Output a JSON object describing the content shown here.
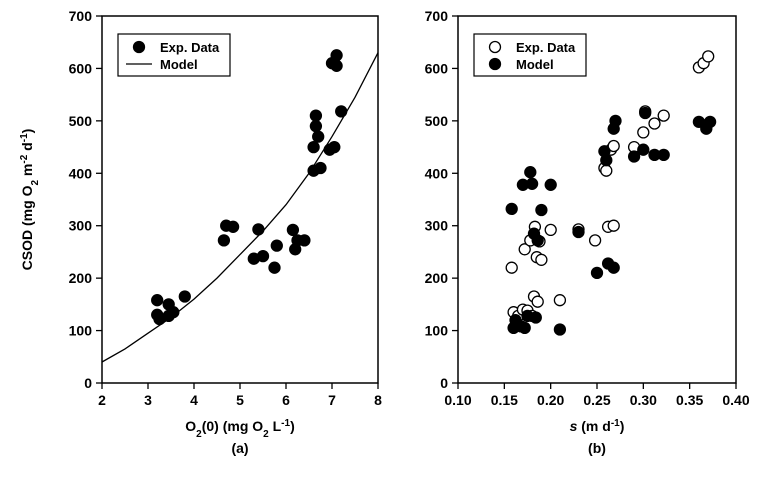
{
  "chart_data": [
    {
      "type": "scatter",
      "panel_label": "(a)",
      "xlabel_parts": [
        {
          "t": "O",
          "sub": false
        },
        {
          "t": "2",
          "sub": true
        },
        {
          "t": "(0) (mg O",
          "sub": false
        },
        {
          "t": "2",
          "sub": true
        },
        {
          "t": " L",
          "sub": false
        },
        {
          "t": "-1",
          "sup": true
        },
        {
          "t": ")",
          "sub": false
        }
      ],
      "ylabel_parts": [
        {
          "t": "CSOD (mg O",
          "sub": false
        },
        {
          "t": "2",
          "sub": true
        },
        {
          "t": " m",
          "sub": false
        },
        {
          "t": "-2",
          "sup": true
        },
        {
          "t": " d",
          "sub": false
        },
        {
          "t": "-1",
          "sup": true
        },
        {
          "t": ")",
          "sub": false
        }
      ],
      "xlim": [
        2,
        8
      ],
      "ylim": [
        0,
        700
      ],
      "xticks": [
        "2",
        "3",
        "4",
        "5",
        "6",
        "7",
        "8"
      ],
      "yticks": [
        "0",
        "100",
        "200",
        "300",
        "400",
        "500",
        "600",
        "700"
      ],
      "legend": {
        "position": "top-left",
        "entries": [
          "Exp. Data",
          "Model"
        ]
      },
      "series": [
        {
          "name": "Exp. Data",
          "marker": "filled-circle",
          "points": [
            [
              3.2,
              158
            ],
            [
              3.2,
              130
            ],
            [
              3.25,
              122
            ],
            [
              3.45,
              150
            ],
            [
              3.45,
              128
            ],
            [
              3.55,
              135
            ],
            [
              3.8,
              165
            ],
            [
              4.65,
              272
            ],
            [
              4.7,
              300
            ],
            [
              4.85,
              298
            ],
            [
              5.3,
              237
            ],
            [
              5.4,
              293
            ],
            [
              5.5,
              242
            ],
            [
              5.75,
              220
            ],
            [
              5.8,
              262
            ],
            [
              6.15,
              292
            ],
            [
              6.2,
              255
            ],
            [
              6.25,
              272
            ],
            [
              6.4,
              272
            ],
            [
              6.6,
              450
            ],
            [
              6.6,
              405
            ],
            [
              6.65,
              510
            ],
            [
              6.65,
              490
            ],
            [
              6.7,
              470
            ],
            [
              6.75,
              410
            ],
            [
              6.95,
              445
            ],
            [
              7.0,
              610
            ],
            [
              7.05,
              450
            ],
            [
              7.1,
              625
            ],
            [
              7.1,
              605
            ],
            [
              7.2,
              518
            ]
          ]
        },
        {
          "name": "Model",
          "type": "line",
          "points": [
            [
              2.0,
              40
            ],
            [
              2.5,
              65
            ],
            [
              3.0,
              95
            ],
            [
              3.5,
              125
            ],
            [
              4.0,
              160
            ],
            [
              4.5,
              200
            ],
            [
              5.0,
              245
            ],
            [
              5.5,
              290
            ],
            [
              6.0,
              340
            ],
            [
              6.5,
              400
            ],
            [
              7.0,
              470
            ],
            [
              7.5,
              545
            ],
            [
              8.0,
              630
            ]
          ]
        }
      ]
    },
    {
      "type": "scatter",
      "panel_label": "(b)",
      "xlabel_parts": [
        {
          "t": "s",
          "italic": true
        },
        {
          "t": " (m d",
          "sub": false
        },
        {
          "t": "-1",
          "sup": true
        },
        {
          "t": ")",
          "sub": false
        }
      ],
      "xlim": [
        0.1,
        0.4
      ],
      "ylim": [
        0,
        700
      ],
      "xticks": [
        "0.10",
        "0.15",
        "0.20",
        "0.25",
        "0.30",
        "0.35",
        "0.40"
      ],
      "yticks": [
        "0",
        "100",
        "200",
        "300",
        "400",
        "500",
        "600",
        "700"
      ],
      "legend": {
        "position": "top-left",
        "entries": [
          "Exp. Data",
          "Model"
        ]
      },
      "series": [
        {
          "name": "Exp. Data",
          "marker": "open-circle",
          "points": [
            [
              0.158,
              220
            ],
            [
              0.16,
              135
            ],
            [
              0.165,
              128
            ],
            [
              0.17,
              140
            ],
            [
              0.172,
              255
            ],
            [
              0.175,
              138
            ],
            [
              0.178,
              272
            ],
            [
              0.18,
              128
            ],
            [
              0.182,
              165
            ],
            [
              0.183,
              298
            ],
            [
              0.185,
              240
            ],
            [
              0.186,
              155
            ],
            [
              0.188,
              270
            ],
            [
              0.19,
              235
            ],
            [
              0.2,
              292
            ],
            [
              0.21,
              158
            ],
            [
              0.23,
              293
            ],
            [
              0.248,
              272
            ],
            [
              0.258,
              410
            ],
            [
              0.26,
              405
            ],
            [
              0.262,
              298
            ],
            [
              0.265,
              445
            ],
            [
              0.268,
              452
            ],
            [
              0.268,
              300
            ],
            [
              0.29,
              450
            ],
            [
              0.3,
              478
            ],
            [
              0.302,
              518
            ],
            [
              0.312,
              495
            ],
            [
              0.322,
              510
            ],
            [
              0.36,
              602
            ],
            [
              0.365,
              610
            ],
            [
              0.37,
              623
            ]
          ]
        },
        {
          "name": "Model",
          "marker": "filled-circle",
          "points": [
            [
              0.158,
              332
            ],
            [
              0.16,
              105
            ],
            [
              0.162,
              120
            ],
            [
              0.168,
              108
            ],
            [
              0.17,
              378
            ],
            [
              0.172,
              105
            ],
            [
              0.175,
              128
            ],
            [
              0.178,
              402
            ],
            [
              0.18,
              380
            ],
            [
              0.182,
              285
            ],
            [
              0.184,
              125
            ],
            [
              0.186,
              272
            ],
            [
              0.19,
              330
            ],
            [
              0.2,
              378
            ],
            [
              0.21,
              102
            ],
            [
              0.23,
              288
            ],
            [
              0.25,
              210
            ],
            [
              0.258,
              442
            ],
            [
              0.26,
              425
            ],
            [
              0.262,
              228
            ],
            [
              0.268,
              485
            ],
            [
              0.268,
              220
            ],
            [
              0.27,
              500
            ],
            [
              0.29,
              432
            ],
            [
              0.3,
              445
            ],
            [
              0.302,
              515
            ],
            [
              0.312,
              435
            ],
            [
              0.322,
              435
            ],
            [
              0.36,
              498
            ],
            [
              0.368,
              485
            ],
            [
              0.372,
              498
            ]
          ]
        }
      ]
    }
  ]
}
